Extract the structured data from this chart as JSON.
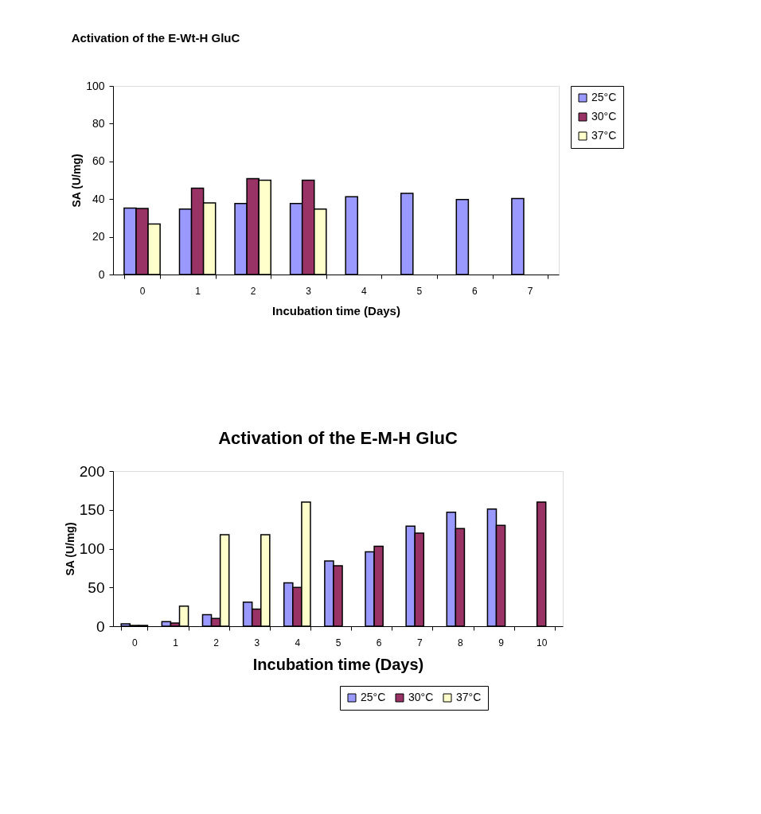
{
  "chart_data": [
    {
      "type": "bar",
      "title": "Activation of the E-Wt-H GluC",
      "xlabel": "Incubation time (Days)",
      "ylabel": "SA (U/mg)",
      "categories": [
        "0",
        "1",
        "2",
        "3",
        "4",
        "5",
        "6",
        "7"
      ],
      "series": [
        {
          "name": "25°C",
          "color": "#9999ff",
          "values": [
            35.2,
            34.7,
            37.7,
            37.7,
            41.2,
            43,
            39.8,
            40.3
          ]
        },
        {
          "name": "30°C",
          "color": "#993366",
          "values": [
            35,
            45.8,
            50.8,
            50,
            null,
            null,
            null,
            null
          ]
        },
        {
          "name": "37°C",
          "color": "#ffffcc",
          "values": [
            26.8,
            38,
            50,
            34.7,
            null,
            null,
            null,
            null
          ]
        }
      ],
      "ylim": [
        0,
        100
      ],
      "yticks": [
        0,
        20,
        40,
        60,
        80,
        100
      ],
      "grid": false,
      "legend": "right"
    },
    {
      "type": "bar",
      "title": "Activation of the E-M-H GluC",
      "xlabel": "Incubation time (Days)",
      "ylabel": "SA (U/mg)",
      "categories": [
        "0",
        "1",
        "2",
        "3",
        "4",
        "5",
        "6",
        "7",
        "8",
        "9",
        "10"
      ],
      "series": [
        {
          "name": "25°C",
          "color": "#9999ff",
          "values": [
            3,
            6,
            15,
            31,
            56,
            84,
            96,
            129,
            147,
            151,
            null
          ]
        },
        {
          "name": "30°C",
          "color": "#993366",
          "values": [
            1,
            4,
            10,
            22,
            50,
            78,
            103,
            120,
            126,
            130,
            160
          ]
        },
        {
          "name": "37°C",
          "color": "#ffffcc",
          "values": [
            1,
            26,
            118,
            118,
            160,
            null,
            null,
            null,
            null,
            null,
            null
          ]
        }
      ],
      "ylim": [
        0,
        200
      ],
      "yticks": [
        0,
        50,
        100,
        150,
        200
      ],
      "grid": false,
      "legend": "bottom right"
    }
  ]
}
